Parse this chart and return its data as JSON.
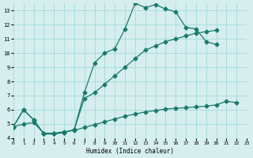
{
  "xlabel": "Humidex (Indice chaleur)",
  "background_color": "#d6eeee",
  "line_color": "#1a7a6e",
  "grid_color": "#aadddd",
  "xlim": [
    0,
    23
  ],
  "ylim": [
    4,
    13.5
  ],
  "xticks": [
    0,
    1,
    2,
    3,
    4,
    5,
    6,
    7,
    8,
    9,
    10,
    11,
    12,
    13,
    14,
    15,
    16,
    17,
    18,
    19,
    20,
    21,
    22,
    23
  ],
  "yticks": [
    4,
    5,
    6,
    7,
    8,
    9,
    10,
    11,
    12,
    13
  ],
  "line1_y": [
    4.8,
    6.0,
    5.3,
    4.3,
    4.3,
    4.4,
    4.6,
    7.2,
    9.3,
    10.0,
    10.3,
    11.7,
    13.5,
    13.2,
    13.4,
    13.1,
    12.9,
    11.8,
    11.7,
    10.8,
    10.6,
    null,
    null,
    null
  ],
  "line2_y": [
    4.8,
    6.0,
    5.3,
    4.3,
    4.3,
    4.4,
    4.6,
    6.8,
    7.2,
    7.8,
    8.4,
    9.0,
    9.6,
    10.2,
    10.5,
    10.8,
    11.0,
    11.2,
    11.4,
    11.5,
    11.6,
    null,
    null,
    null
  ],
  "line3_y": [
    4.8,
    5.0,
    5.1,
    4.35,
    4.35,
    4.45,
    4.55,
    4.75,
    4.95,
    5.15,
    5.35,
    5.55,
    5.7,
    5.85,
    5.95,
    6.05,
    6.1,
    6.15,
    6.2,
    6.25,
    6.35,
    6.6,
    6.5,
    null
  ]
}
